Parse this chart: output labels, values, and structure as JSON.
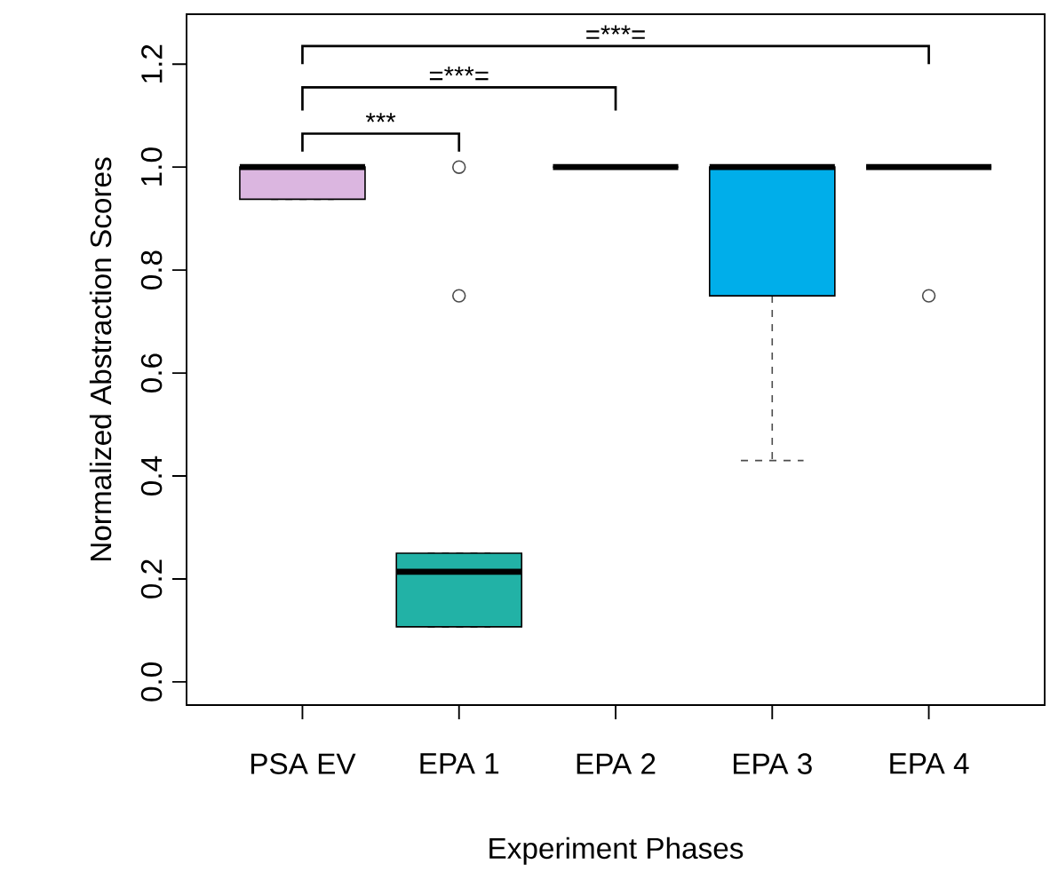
{
  "chart_data": {
    "type": "box",
    "xlabel": "Experiment Phases",
    "ylabel": "Normalized Abstraction Scores",
    "categories": [
      "PSA EV",
      "EPA 1",
      "EPA 2",
      "EPA 3",
      "EPA 4"
    ],
    "colors": [
      "#dbb6e0",
      "#22b2a6",
      null,
      "#00aeea",
      null
    ],
    "boxes": [
      {
        "low": 0.9375,
        "q1": 0.9375,
        "median": 1.0,
        "q3": 1.0,
        "high": 1.0
      },
      {
        "low": 0.107,
        "q1": 0.107,
        "median": 0.214,
        "q3": 0.25,
        "high": 0.25,
        "outliers": [
          0.75,
          1.0
        ]
      },
      {
        "low": 1.0,
        "q1": 1.0,
        "median": 1.0,
        "q3": 1.0,
        "high": 1.0
      },
      {
        "low": 0.43,
        "q1": 0.75,
        "median": 1.0,
        "q3": 1.0,
        "high": 1.0
      },
      {
        "low": 1.0,
        "q1": 1.0,
        "median": 1.0,
        "q3": 1.0,
        "high": 1.0,
        "outliers": [
          0.75
        ]
      }
    ],
    "ylim": [
      -0.045,
      1.297
    ],
    "yticks": [
      {
        "value": 0,
        "label": "0.0"
      },
      {
        "value": 0.2,
        "label": "0.2"
      },
      {
        "value": 0.4,
        "label": "0.4"
      },
      {
        "value": 0.6,
        "label": "0.6"
      },
      {
        "value": 0.8,
        "label": "0.8"
      },
      {
        "value": 1.0,
        "label": "1.0"
      },
      {
        "value": 1.2,
        "label": "1.2"
      }
    ],
    "annotations": [
      "***",
      "=***=",
      "=***="
    ],
    "grid": false
  }
}
